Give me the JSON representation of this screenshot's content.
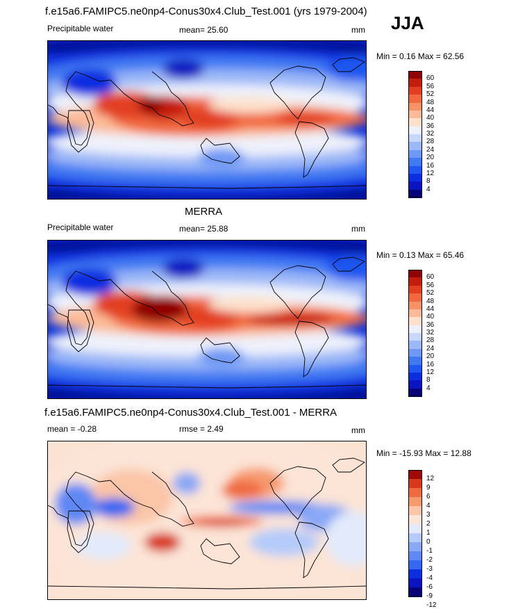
{
  "header": {
    "title": "f.e15a6.FAMIPC5.ne0np4-Conus30x4.Club_Test.001 (yrs 1979-2004)",
    "season": "JJA"
  },
  "palettes": {
    "pw": [
      "#06037a",
      "#0a14c0",
      "#0b2fe0",
      "#1f57f0",
      "#4079f3",
      "#6e98f5",
      "#9cb8f7",
      "#c8d8fb",
      "#eef1fb",
      "#fde1cc",
      "#fbbb98",
      "#f79267",
      "#f1673e",
      "#e23f20",
      "#c41d0f",
      "#8f0505"
    ],
    "diff": [
      "#06037a",
      "#0a14c0",
      "#0b2fe0",
      "#3467f2",
      "#5e88f4",
      "#8aa8f6",
      "#b5cbf9",
      "#e2eafb",
      "#fce4d6",
      "#fbc5a8",
      "#f79a70",
      "#f06a40",
      "#d8381b",
      "#a00a06"
    ]
  },
  "panels": [
    {
      "id": "model",
      "title": "",
      "variable": "Precipitable water",
      "stat_text": "mean=  25.60",
      "units": "mm",
      "minmax_text": "Min =   0.16 Max =  62.56",
      "colorbar_ticks": [
        "60",
        "56",
        "52",
        "48",
        "44",
        "40",
        "36",
        "32",
        "28",
        "24",
        "20",
        "16",
        "12",
        "8",
        "4"
      ]
    },
    {
      "id": "obs",
      "title": "MERRA",
      "variable": "Precipitable water",
      "stat_text": "mean=  25.88",
      "units": "mm",
      "minmax_text": "Min =   0.13 Max =  65.46",
      "colorbar_ticks": [
        "60",
        "56",
        "52",
        "48",
        "44",
        "40",
        "36",
        "32",
        "28",
        "24",
        "20",
        "16",
        "12",
        "8",
        "4"
      ]
    },
    {
      "id": "diff",
      "title": "f.e15a6.FAMIPC5.ne0np4-Conus30x4.Club_Test.001 - MERRA",
      "variable": "mean =  -0.28",
      "stat_text": "rmse =   2.49",
      "units": "mm",
      "minmax_text": "Min = -15.93 Max =  12.88",
      "colorbar_ticks": [
        "12",
        "9",
        "6",
        "4",
        "3",
        "2",
        "1",
        "0",
        "-1",
        "-2",
        "-3",
        "-4",
        "-6",
        "-9",
        "-12"
      ]
    }
  ],
  "chart_data": [
    {
      "type": "heatmap",
      "title": "f.e15a6.FAMIPC5.ne0np4-Conus30x4.Club_Test.001 (yrs 1979-2004)",
      "season": "JJA",
      "variable": "Precipitable water",
      "units": "mm",
      "mean": 25.6,
      "min": 0.16,
      "max": 62.56,
      "levels": [
        4,
        8,
        12,
        16,
        20,
        24,
        28,
        32,
        36,
        40,
        44,
        48,
        52,
        56,
        60
      ]
    },
    {
      "type": "heatmap",
      "title": "MERRA",
      "variable": "Precipitable water",
      "units": "mm",
      "mean": 25.88,
      "min": 0.13,
      "max": 65.46,
      "levels": [
        4,
        8,
        12,
        16,
        20,
        24,
        28,
        32,
        36,
        40,
        44,
        48,
        52,
        56,
        60
      ]
    },
    {
      "type": "heatmap",
      "title": "f.e15a6.FAMIPC5.ne0np4-Conus30x4.Club_Test.001 - MERRA",
      "units": "mm",
      "mean": -0.28,
      "rmse": 2.49,
      "min": -15.93,
      "max": 12.88,
      "levels": [
        -12,
        -9,
        -6,
        -4,
        -3,
        -2,
        -1,
        0,
        1,
        2,
        3,
        4,
        6,
        9,
        12
      ]
    }
  ]
}
